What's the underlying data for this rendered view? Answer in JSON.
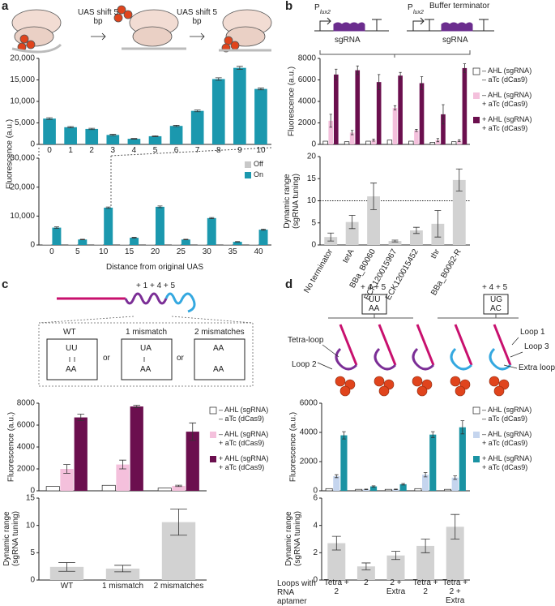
{
  "panels": {
    "a": "a",
    "b": "b",
    "c": "c",
    "d": "d"
  },
  "schematics": {
    "a": {
      "shift_1": "UAS shift 5 bp",
      "shift_2": "UAS shift 5 bp"
    },
    "b": {
      "p1": "P",
      "p1_sub": "lux2",
      "p2": "P",
      "p2_sub": "lux2",
      "buffer": "Buffer terminator",
      "sg1": "sgRNA",
      "sg2": "sgRNA"
    },
    "c": {
      "positions": "+ 1 + 4 + 5",
      "wt": "WT",
      "m1": "1 mismatch",
      "m2": "2 mismatches",
      "or1": "or",
      "or2": "or",
      "wt_top": "UU",
      "wt_bot": "AA",
      "m1_top": "UA",
      "m1_bot": "AA",
      "m2_top": "AA",
      "m2_bot": "AA"
    },
    "d": {
      "pos1": "+ 4 + 5",
      "pos2": "+ 4 + 5",
      "b1_top": "UU",
      "b1_bot": "AA",
      "b2_top": "UG",
      "b2_bot": "AC",
      "loop1": "Loop 1",
      "loop3": "Loop 3",
      "tetra": "Tetra-loop",
      "extra": "Extra loop",
      "loop2": "Loop 2"
    }
  },
  "chart_data": [
    {
      "type": "bar",
      "categories": [
        "0",
        "1",
        "2",
        "3",
        "4",
        "5",
        "6",
        "7",
        "8",
        "9",
        "10"
      ],
      "values": [
        6000,
        4000,
        3600,
        2200,
        1300,
        1900,
        4300,
        7800,
        15200,
        17800,
        12900
      ],
      "errors": [
        200,
        150,
        150,
        150,
        80,
        100,
        150,
        200,
        300,
        350,
        200
      ],
      "color": "#1b98ae",
      "ylim": [
        0,
        20000
      ],
      "yticks": [
        0,
        {
          "value": 5000,
          "label": "5,000"
        },
        {
          "value": 10000,
          "label": "10,000"
        },
        {
          "value": 15000,
          "label": "15,000"
        },
        {
          "value": 20000,
          "label": "20,000"
        }
      ]
    },
    {
      "type": "bar",
      "categories": [
        "0",
        "5",
        "10",
        "15",
        "20",
        "25",
        "30",
        "35",
        "40"
      ],
      "series": [
        {
          "name": "Off",
          "color": "#c8c8c8",
          "values": [
            100,
            100,
            100,
            100,
            100,
            100,
            100,
            100,
            100
          ]
        },
        {
          "name": "On",
          "color": "#1b98ae",
          "values": [
            6000,
            1900,
            12900,
            2500,
            13200,
            1900,
            9300,
            1100,
            5300
          ],
          "errors": [
            250,
            100,
            250,
            150,
            300,
            100,
            200,
            80,
            200
          ]
        }
      ],
      "ylim": [
        0,
        30000
      ],
      "yticks": [
        0,
        {
          "value": 10000,
          "label": "10,000"
        },
        {
          "value": 20000,
          "label": "20,000"
        },
        {
          "value": 30000,
          "label": "30,000"
        }
      ],
      "xlabel": "Distance from original UAS",
      "ylabel": "Fluorescence (a.u.)",
      "legend": "upper right"
    },
    {
      "type": "bar",
      "series": [
        {
          "name": "– AHL (sgRNA)\n– aTc (dCas9)",
          "color": "#ffffff",
          "values": [
            300,
            250,
            300,
            400,
            300,
            200,
            250
          ]
        },
        {
          "name": "– AHL (sgRNA)\n+ aTc (dCas9)",
          "color": "#f4c0dc",
          "values": [
            2200,
            1100,
            400,
            3400,
            1300,
            400,
            350
          ],
          "errors": [
            600,
            200,
            100,
            200,
            100,
            150,
            80
          ]
        },
        {
          "name": "+ AHL (sgRNA)\n+ aTc (dCas9)",
          "color": "#6b0f4e",
          "values": [
            6500,
            6900,
            5800,
            6400,
            5700,
            2800,
            7100
          ],
          "errors": [
            500,
            400,
            700,
            300,
            600,
            900,
            400
          ]
        }
      ],
      "ylim": [
        0,
        8000
      ],
      "yticks": [
        0,
        2000,
        4000,
        6000,
        8000
      ],
      "ylabel": "Fluorescence (a.u.)",
      "legend": "right"
    },
    {
      "type": "bar",
      "categories": [
        "No terminator",
        "tetA",
        "BBa_B0060",
        "ECK120015967",
        "ECK120015452",
        "thr",
        "BBa_B0062-R"
      ],
      "values": [
        1.8,
        5.2,
        11,
        0.9,
        3.3,
        4.8,
        14.7
      ],
      "errors": [
        0.9,
        1.5,
        3,
        0.2,
        0.7,
        3,
        2.5
      ],
      "color": "#d2d2d2",
      "ylim": [
        0,
        20
      ],
      "yticks": [
        0,
        5,
        10,
        15,
        20
      ],
      "reference_line": 10,
      "ylabel": "Dynamic range\n(sgRNA tuning)"
    },
    {
      "type": "bar",
      "series": [
        {
          "name": "– AHL (sgRNA)\n– aTc (dCas9)",
          "color": "#ffffff",
          "values": [
            400,
            500,
            250
          ]
        },
        {
          "name": "– AHL (sgRNA)\n+ aTc (dCas9)",
          "color": "#f4c0dc",
          "values": [
            2000,
            2400,
            450
          ],
          "errors": [
            400,
            400,
            60
          ]
        },
        {
          "name": "+ AHL (sgRNA)\n+ aTc (dCas9)",
          "color": "#6b0f4e",
          "values": [
            6700,
            7700,
            5400
          ],
          "errors": [
            300,
            100,
            800
          ]
        }
      ],
      "ylim": [
        0,
        8000
      ],
      "yticks": [
        0,
        2000,
        4000,
        6000,
        8000
      ],
      "ylabel": "Fluorescence (a.u.)",
      "legend": "right"
    },
    {
      "type": "bar",
      "categories": [
        "WT",
        "1 mismatch",
        "2 mismatches"
      ],
      "values": [
        2.4,
        2.1,
        10.6
      ],
      "errors": [
        0.8,
        0.6,
        2.4
      ],
      "color": "#d2d2d2",
      "ylim": [
        0,
        15
      ],
      "yticks": [
        0,
        5,
        10,
        15
      ],
      "ylabel": "Dynamic range\n(sgRNA tuning)"
    },
    {
      "type": "bar",
      "series": [
        {
          "name": "– AHL (sgRNA)\n– aTc (dCas9)",
          "color": "#ffffff",
          "values": [
            150,
            100,
            100,
            150,
            100
          ]
        },
        {
          "name": "– AHL (sgRNA)\n+ aTc (dCas9)",
          "color": "#c5d5ee",
          "values": [
            1000,
            100,
            100,
            1100,
            900
          ],
          "errors": [
            100,
            20,
            20,
            150,
            120
          ]
        },
        {
          "name": "+ AHL (sgRNA)\n+ aTc (dCas9)",
          "color": "#1a93a3",
          "values": [
            3800,
            300,
            450,
            3850,
            4350
          ],
          "errors": [
            250,
            40,
            50,
            200,
            450
          ]
        }
      ],
      "ylim": [
        0,
        6000
      ],
      "yticks": [
        0,
        2000,
        4000,
        6000
      ],
      "ylabel": "Fluorescence (a.u.)",
      "legend": "right"
    },
    {
      "type": "bar",
      "categories": [
        "Tetra + 2",
        "2",
        "2 + Extra",
        "Tetra + 2",
        "Tetra + 2 + Extra"
      ],
      "values": [
        2.7,
        1.0,
        1.8,
        2.5,
        3.9
      ],
      "errors": [
        0.5,
        0.25,
        0.3,
        0.5,
        0.9
      ],
      "color": "#d2d2d2",
      "ylim": [
        0,
        6
      ],
      "yticks": [
        0,
        2,
        4,
        6
      ],
      "xlabel": "Loops with RNA aptamer",
      "ylabel": "Dynamic range\n(sgRNA tuning)"
    }
  ]
}
